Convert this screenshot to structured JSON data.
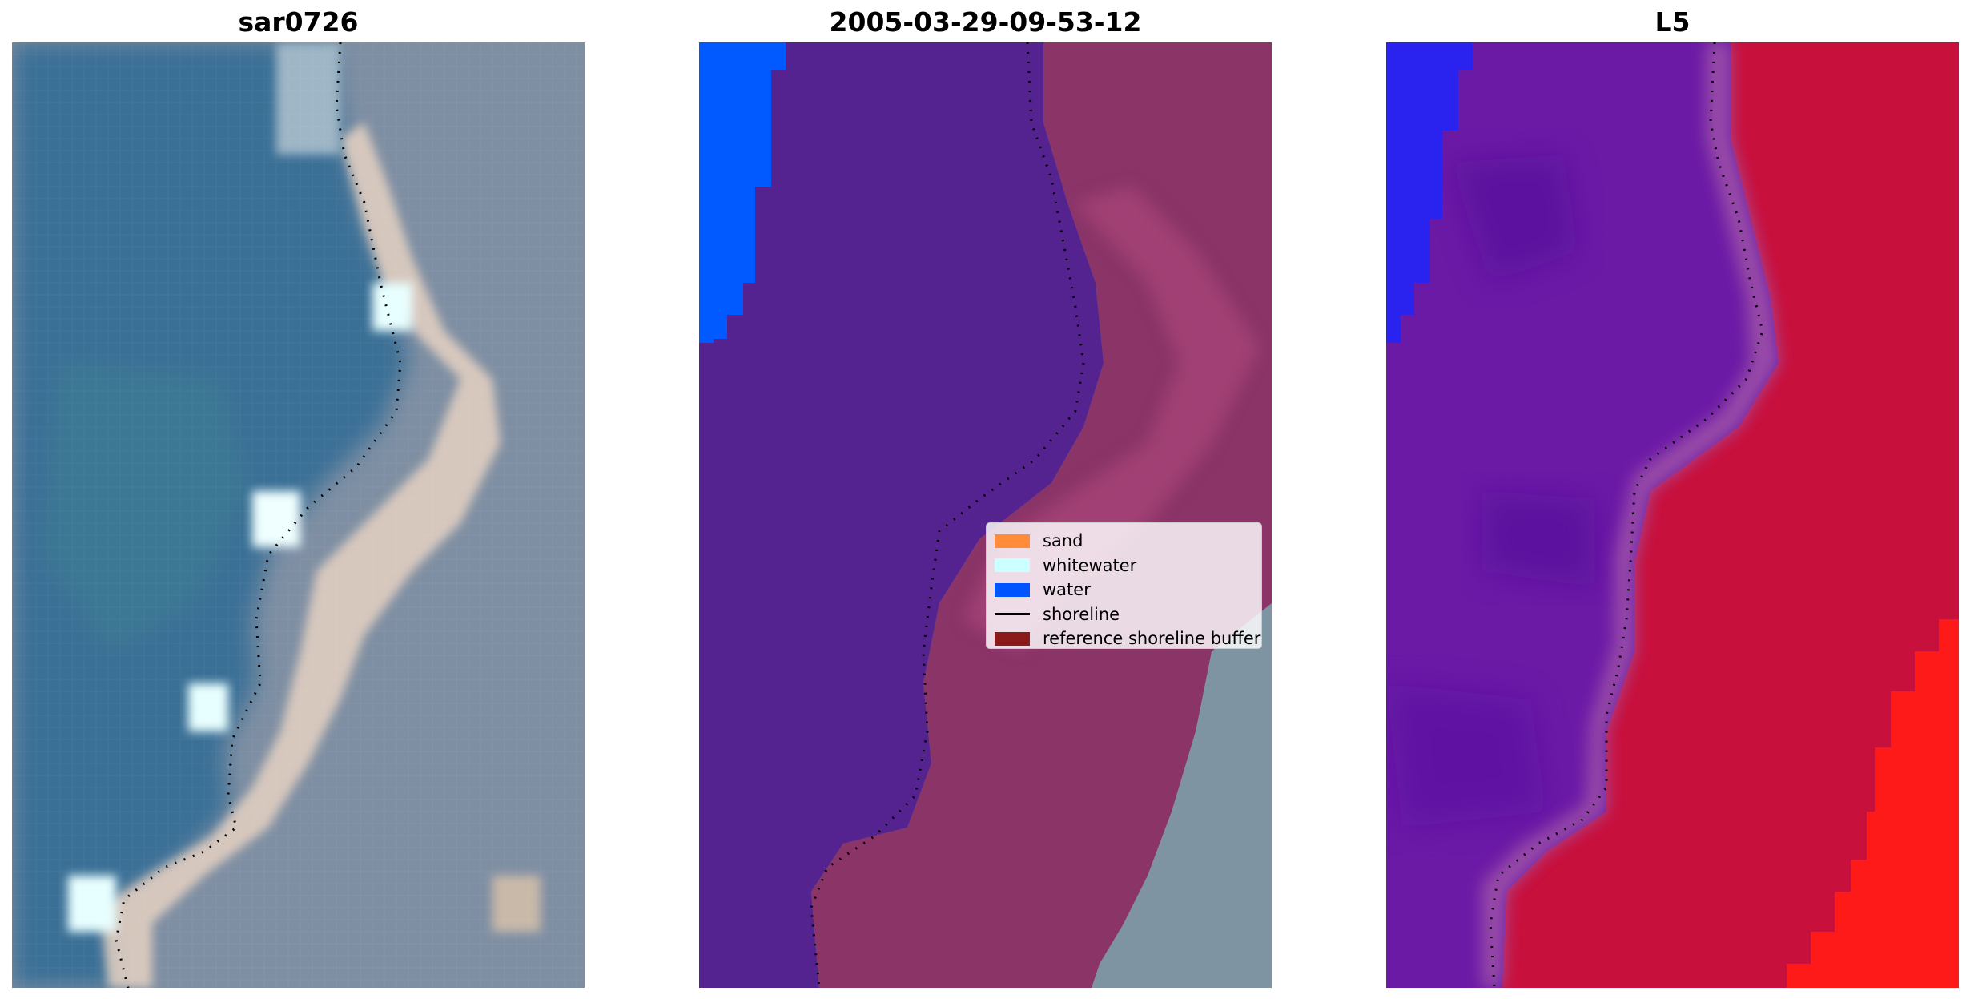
{
  "panels": [
    {
      "title": "sar0726"
    },
    {
      "title": "2005-03-29-09-53-12"
    },
    {
      "title": "L5"
    }
  ],
  "legend": {
    "items": [
      {
        "label": "sand",
        "color": "#ff8c3a",
        "kind": "patch"
      },
      {
        "label": "whitewater",
        "color": "#ccffff",
        "kind": "patch"
      },
      {
        "label": "water",
        "color": "#0055ff",
        "kind": "patch"
      },
      {
        "label": "shoreline",
        "color": "#000000",
        "kind": "line"
      },
      {
        "label": "reference shoreline buffer",
        "color": "#8b1a1a",
        "kind": "patch"
      }
    ]
  },
  "colors": {
    "ocean": "#3a6f96",
    "land_rgb": "#7f8fa3",
    "sand_highlight": "#e6d2c2",
    "classified_water_region": "#55238f",
    "classified_buffer_region": "#8a3468",
    "classified_water": "#005aff",
    "index_negative": "#6b1aa6",
    "index_positive": "#c8103c",
    "index_max": "#ff1a1a",
    "index_min": "#1010ff"
  }
}
